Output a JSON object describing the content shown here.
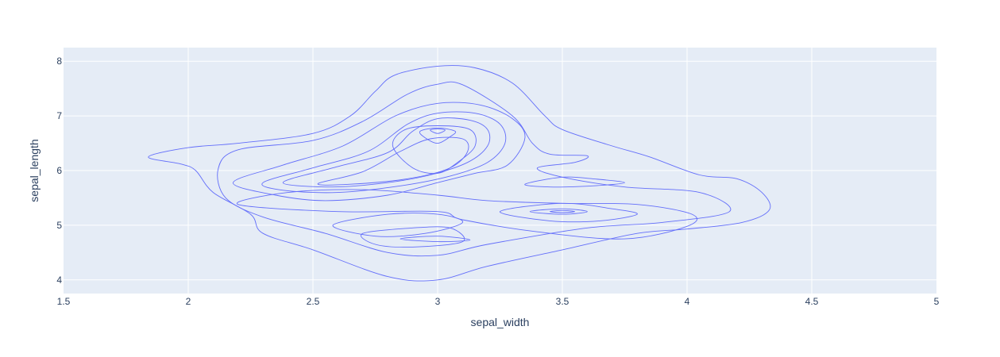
{
  "chart_data": {
    "type": "contour",
    "xlabel": "sepal_width",
    "ylabel": "sepal_length",
    "xlim": [
      1.5,
      5
    ],
    "ylim": [
      3.75,
      8.25
    ],
    "x_ticks": [
      1.5,
      2,
      2.5,
      3,
      3.5,
      4,
      4.5,
      5
    ],
    "x_tick_labels": [
      "1.5",
      "2",
      "2.5",
      "3",
      "3.5",
      "4",
      "4.5",
      "5"
    ],
    "y_ticks": [
      4,
      5,
      6,
      7,
      8
    ],
    "y_tick_labels": [
      "4",
      "5",
      "6",
      "7",
      "8"
    ],
    "grid": true,
    "legend": "none",
    "colors": {
      "plot_background": "#E5ECF6",
      "grid": "#ffffff",
      "contour": "#636EFA",
      "text": "#2a3f5f"
    },
    "series": [
      {
        "contours": [
          [
            [
              1.84,
              6.25
            ],
            [
              2.0,
              6.42
            ],
            [
              2.2,
              6.5
            ],
            [
              2.5,
              6.68
            ],
            [
              2.65,
              7.0
            ],
            [
              2.75,
              7.45
            ],
            [
              2.83,
              7.75
            ],
            [
              3.0,
              7.91
            ],
            [
              3.15,
              7.88
            ],
            [
              3.3,
              7.6
            ],
            [
              3.43,
              7.0
            ],
            [
              3.5,
              6.75
            ],
            [
              3.7,
              6.45
            ],
            [
              3.85,
              6.25
            ],
            [
              4.05,
              5.92
            ],
            [
              4.2,
              5.85
            ],
            [
              4.3,
              5.6
            ],
            [
              4.33,
              5.28
            ],
            [
              4.22,
              5.05
            ],
            [
              4.0,
              4.93
            ],
            [
              3.8,
              4.85
            ],
            [
              3.5,
              4.55
            ],
            [
              3.2,
              4.25
            ],
            [
              3.0,
              4.0
            ],
            [
              2.8,
              4.06
            ],
            [
              2.5,
              4.55
            ],
            [
              2.3,
              4.85
            ],
            [
              2.25,
              5.2
            ],
            [
              2.1,
              5.6
            ],
            [
              2.03,
              6.0
            ],
            [
              1.97,
              6.12
            ],
            [
              1.84,
              6.25
            ]
          ],
          [
            [
              2.12,
              6.03
            ],
            [
              2.2,
              6.38
            ],
            [
              2.5,
              6.55
            ],
            [
              2.7,
              6.9
            ],
            [
              2.88,
              7.4
            ],
            [
              3.0,
              7.58
            ],
            [
              3.1,
              7.57
            ],
            [
              3.3,
              7.0
            ],
            [
              3.38,
              6.5
            ],
            [
              3.45,
              6.3
            ],
            [
              3.6,
              6.27
            ],
            [
              3.55,
              6.15
            ],
            [
              3.4,
              6.05
            ],
            [
              3.5,
              5.88
            ],
            [
              3.75,
              5.7
            ],
            [
              4.05,
              5.6
            ],
            [
              4.17,
              5.25
            ],
            [
              3.9,
              5.05
            ],
            [
              3.6,
              4.95
            ],
            [
              3.2,
              4.65
            ],
            [
              3.0,
              4.45
            ],
            [
              2.8,
              4.5
            ],
            [
              2.55,
              4.85
            ],
            [
              2.3,
              5.15
            ],
            [
              2.15,
              5.5
            ],
            [
              2.12,
              6.03
            ]
          ],
          [
            [
              2.18,
              5.78
            ],
            [
              2.38,
              6.1
            ],
            [
              2.62,
              6.45
            ],
            [
              2.83,
              7.0
            ],
            [
              3.0,
              7.23
            ],
            [
              3.17,
              7.2
            ],
            [
              3.3,
              6.95
            ],
            [
              3.35,
              6.6
            ],
            [
              3.28,
              6.1
            ],
            [
              3.15,
              5.95
            ],
            [
              3.0,
              5.78
            ],
            [
              2.8,
              5.55
            ],
            [
              2.55,
              5.45
            ],
            [
              2.35,
              5.55
            ],
            [
              2.18,
              5.78
            ]
          ],
          [
            [
              2.3,
              5.78
            ],
            [
              2.5,
              6.05
            ],
            [
              2.72,
              6.35
            ],
            [
              2.88,
              6.85
            ],
            [
              3.0,
              7.05
            ],
            [
              3.15,
              7.05
            ],
            [
              3.25,
              6.85
            ],
            [
              3.27,
              6.5
            ],
            [
              3.2,
              6.15
            ],
            [
              3.05,
              5.9
            ],
            [
              2.85,
              5.72
            ],
            [
              2.6,
              5.6
            ],
            [
              2.38,
              5.64
            ],
            [
              2.3,
              5.78
            ]
          ],
          [
            [
              2.38,
              5.78
            ],
            [
              2.58,
              6.05
            ],
            [
              2.8,
              6.33
            ],
            [
              2.9,
              6.72
            ],
            [
              3.0,
              6.95
            ],
            [
              3.13,
              6.92
            ],
            [
              3.2,
              6.75
            ],
            [
              3.2,
              6.45
            ],
            [
              3.12,
              6.15
            ],
            [
              2.97,
              5.92
            ],
            [
              2.8,
              5.78
            ],
            [
              2.58,
              5.7
            ],
            [
              2.38,
              5.78
            ]
          ],
          [
            [
              2.52,
              5.76
            ],
            [
              2.7,
              5.98
            ],
            [
              2.85,
              6.35
            ],
            [
              2.97,
              6.58
            ],
            [
              3.1,
              6.58
            ],
            [
              3.12,
              6.35
            ],
            [
              3.05,
              6.05
            ],
            [
              2.88,
              5.85
            ],
            [
              2.65,
              5.75
            ],
            [
              2.52,
              5.76
            ]
          ],
          [
            [
              2.82,
              6.45
            ],
            [
              2.87,
              6.75
            ],
            [
              3.0,
              6.82
            ],
            [
              3.13,
              6.75
            ],
            [
              3.15,
              6.45
            ],
            [
              3.08,
              6.15
            ],
            [
              3.0,
              5.95
            ],
            [
              2.9,
              6.05
            ],
            [
              2.82,
              6.45
            ]
          ],
          [
            [
              2.93,
              6.72
            ],
            [
              3.0,
              6.78
            ],
            [
              3.07,
              6.72
            ],
            [
              3.05,
              6.62
            ],
            [
              3.0,
              6.5
            ],
            [
              2.95,
              6.6
            ],
            [
              2.93,
              6.72
            ]
          ],
          [
            [
              2.97,
              6.74
            ],
            [
              3.0,
              6.76
            ],
            [
              3.03,
              6.74
            ],
            [
              3.0,
              6.68
            ],
            [
              2.97,
              6.74
            ]
          ],
          [
            [
              2.2,
              5.38
            ],
            [
              2.6,
              5.25
            ],
            [
              3.0,
              5.25
            ],
            [
              3.1,
              5.1
            ],
            [
              3.4,
              4.88
            ],
            [
              3.75,
              4.75
            ],
            [
              4.0,
              4.98
            ],
            [
              4.02,
              5.2
            ],
            [
              3.8,
              5.38
            ],
            [
              3.5,
              5.4
            ],
            [
              3.2,
              5.45
            ],
            [
              3.0,
              5.55
            ],
            [
              2.7,
              5.65
            ],
            [
              2.4,
              5.6
            ],
            [
              2.2,
              5.38
            ]
          ],
          [
            [
              2.58,
              5.0
            ],
            [
              2.8,
              5.2
            ],
            [
              3.0,
              5.2
            ],
            [
              3.1,
              5.05
            ],
            [
              2.95,
              4.85
            ],
            [
              2.75,
              4.8
            ],
            [
              2.58,
              5.0
            ]
          ],
          [
            [
              2.7,
              4.85
            ],
            [
              2.9,
              4.95
            ],
            [
              3.05,
              4.95
            ],
            [
              3.1,
              4.7
            ],
            [
              2.9,
              4.6
            ],
            [
              2.75,
              4.65
            ],
            [
              2.7,
              4.85
            ]
          ],
          [
            [
              2.85,
              4.75
            ],
            [
              3.0,
              4.8
            ],
            [
              3.13,
              4.73
            ],
            [
              3.0,
              4.7
            ],
            [
              2.85,
              4.75
            ]
          ],
          [
            [
              3.25,
              5.25
            ],
            [
              3.5,
              5.4
            ],
            [
              3.7,
              5.3
            ],
            [
              3.8,
              5.2
            ],
            [
              3.65,
              5.08
            ],
            [
              3.45,
              5.08
            ],
            [
              3.25,
              5.25
            ]
          ],
          [
            [
              3.37,
              5.25
            ],
            [
              3.5,
              5.3
            ],
            [
              3.6,
              5.25
            ],
            [
              3.5,
              5.2
            ],
            [
              3.37,
              5.25
            ]
          ],
          [
            [
              3.45,
              5.25
            ],
            [
              3.5,
              5.27
            ],
            [
              3.55,
              5.25
            ],
            [
              3.5,
              5.23
            ],
            [
              3.45,
              5.25
            ]
          ],
          [
            [
              3.35,
              5.75
            ],
            [
              3.5,
              5.88
            ],
            [
              3.62,
              5.85
            ],
            [
              3.75,
              5.78
            ],
            [
              3.62,
              5.72
            ],
            [
              3.45,
              5.7
            ],
            [
              3.35,
              5.75
            ]
          ]
        ]
      }
    ]
  }
}
